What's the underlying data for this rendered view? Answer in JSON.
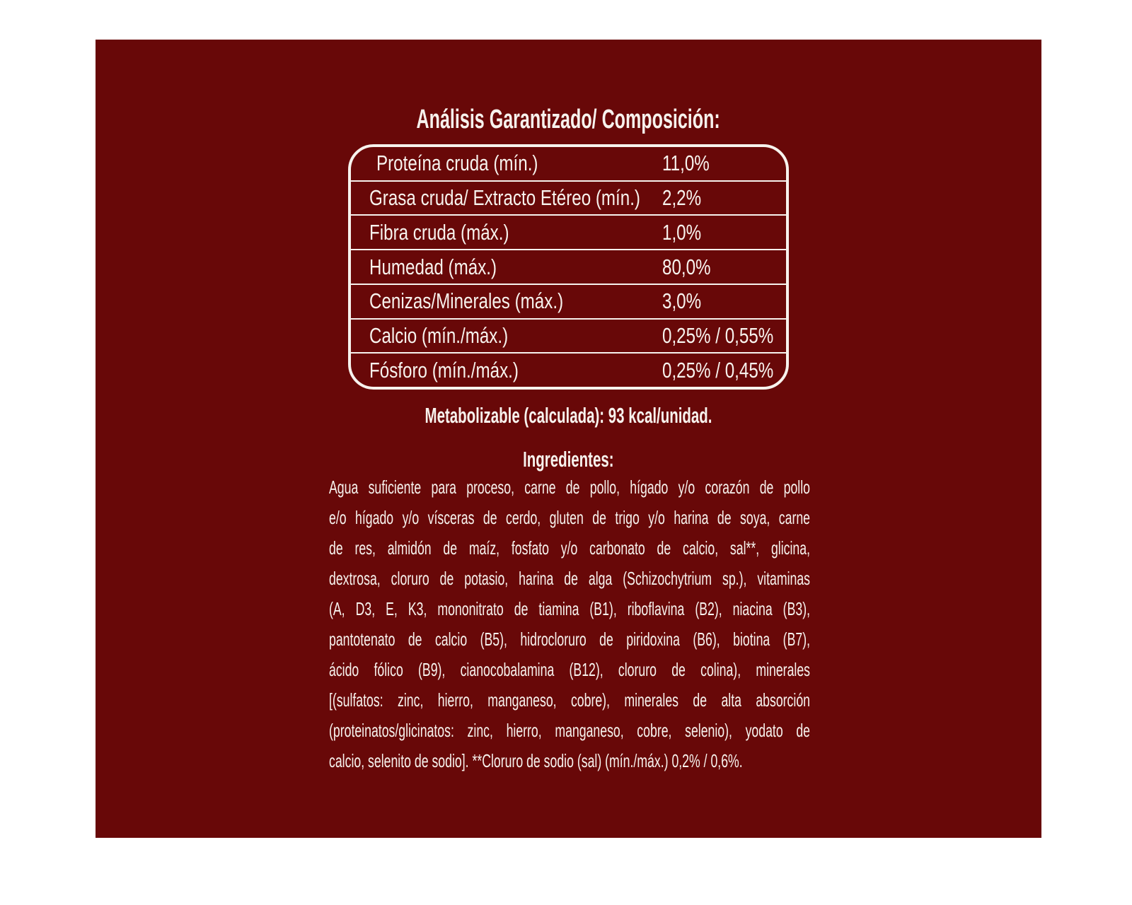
{
  "colors": {
    "page_background": "#ffffff",
    "panel_background": "#680808",
    "text": "#f7f2ed"
  },
  "analysis": {
    "title": "Análisis Garantizado/ Composición:",
    "rows": [
      {
        "label": "Proteína cruda (mín.)",
        "value": "11,0%"
      },
      {
        "label": "Grasa cruda/ Extracto Etéreo (mín.)",
        "value": "2,2%"
      },
      {
        "label": "Fibra cruda (máx.)",
        "value": "1,0%"
      },
      {
        "label": "Humedad (máx.)",
        "value": "80,0%"
      },
      {
        "label": "Cenizas/Minerales (máx.)",
        "value": "3,0%"
      },
      {
        "label": "Calcio (mín./máx.)",
        "value": "0,25% / 0,55%"
      },
      {
        "label": "Fósforo (mín./máx.)",
        "value": "0,25% / 0,45%"
      }
    ],
    "energy_line": "Metabolizable (calculada): 93 kcal/unidad."
  },
  "ingredients": {
    "heading": "Ingredientes:",
    "lines": [
      "Agua suficiente para proceso, carne de pollo, hígado y/o corazón de pollo",
      "e/o hígado y/o vísceras de cerdo, gluten de trigo y/o harina de soya, carne",
      "de res, almidón de maíz, fosfato y/o carbonato de calcio, sal**, glicina,",
      "dextrosa, cloruro de potasio, harina de alga (Schizochytrium sp.), vitaminas",
      "(A, D3, E, K3, mononitrato de tiamina (B1), riboflavina (B2), niacina (B3),",
      "pantotenato de calcio (B5), hidrocloruro de piridoxina (B6), biotina (B7),",
      "ácido fólico (B9), cianocobalamina (B12), cloruro de colina), minerales",
      "[(sulfatos: zinc, hierro, manganeso, cobre), minerales de alta absorción",
      "(proteinatos/glicinatos: zinc, hierro, manganeso, cobre, selenio), yodato de",
      "calcio, selenito de sodio]. **Cloruro de sodio (sal) (mín./máx.) 0,2% / 0,6%."
    ]
  }
}
